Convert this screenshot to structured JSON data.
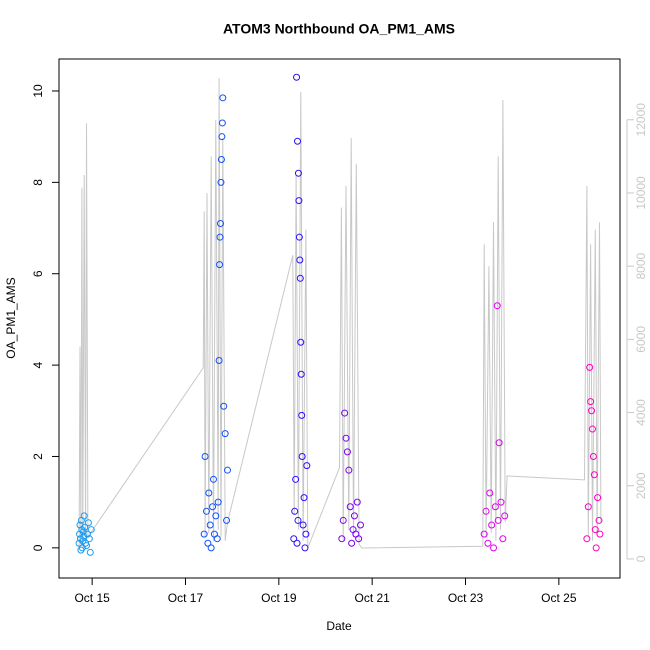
{
  "chart_data": {
    "type": "scatter",
    "title": "ATOM3 Northbound OA_PM1_AMS",
    "x_label": "Date",
    "y_label": "OA_PM1_AMS",
    "xlim": [
      14.29,
      26.31
    ],
    "xticks": [
      {
        "value": 15,
        "label": "Oct 15"
      },
      {
        "value": 17,
        "label": "Oct 17"
      },
      {
        "value": 19,
        "label": "Oct 19"
      },
      {
        "value": 21,
        "label": "Oct 21"
      },
      {
        "value": 23,
        "label": "Oct 23"
      },
      {
        "value": 25,
        "label": "Oct 25"
      }
    ],
    "ylim": [
      -0.66,
      10.7
    ],
    "yticks": [
      0,
      2,
      4,
      6,
      8,
      10
    ],
    "y2lim": [
      -520,
      13660
    ],
    "y2ticks": [
      0,
      2000,
      4000,
      6000,
      8000,
      10000,
      12000
    ],
    "y2_color": "#c8c8c8",
    "series": [
      {
        "style": "line",
        "axis": "y2",
        "color": "#c8c8c8",
        "x": [
          14.72,
          14.74,
          14.76,
          14.78,
          14.8,
          14.83,
          14.86,
          14.88,
          14.91,
          17.38,
          17.4,
          17.42,
          17.46,
          17.5,
          17.55,
          17.6,
          17.65,
          17.7,
          17.72,
          17.76,
          17.8,
          17.85,
          17.9,
          19.3,
          19.33,
          19.37,
          19.42,
          19.47,
          19.52,
          19.58,
          19.62,
          20.3,
          20.34,
          20.38,
          20.44,
          20.5,
          20.55,
          20.6,
          20.66,
          20.72,
          20.78,
          23.37,
          23.4,
          23.44,
          23.5,
          23.55,
          23.6,
          23.65,
          23.7,
          23.75,
          23.8,
          23.85,
          23.89,
          25.55,
          25.6,
          25.63,
          25.68,
          25.72,
          25.78,
          25.82,
          25.87,
          25.9
        ],
        "values": [
          300,
          5800,
          400,
          10140,
          350,
          10490,
          500,
          11900,
          600,
          5220,
          9500,
          600,
          10000,
          700,
          11000,
          500,
          12000,
          800,
          13140,
          600,
          11500,
          500,
          1000,
          8300,
          1200,
          10500,
          800,
          12760,
          500,
          9000,
          300,
          2500,
          9600,
          500,
          10200,
          800,
          11500,
          600,
          10800,
          400,
          300,
          350,
          8600,
          600,
          8000,
          700,
          9200,
          500,
          11000,
          800,
          12540,
          1000,
          2270,
          2160,
          10190,
          600,
          8600,
          500,
          9000,
          700,
          9200,
          1000
        ]
      },
      {
        "style": "points",
        "color": "#1e9bf0",
        "x": [
          14.72,
          14.73,
          14.74,
          14.75,
          14.76,
          14.77,
          14.78,
          14.79,
          14.8,
          14.81,
          14.82,
          14.83,
          14.84,
          14.86,
          14.88,
          14.9,
          14.92,
          14.94,
          14.96,
          14.98
        ],
        "values": [
          0.1,
          0.3,
          0.5,
          0.2,
          -0.05,
          0.6,
          0.4,
          0.0,
          0.15,
          0.35,
          0.25,
          0.7,
          0.45,
          0.1,
          0.05,
          0.3,
          0.55,
          0.2,
          -0.1,
          0.4
        ]
      },
      {
        "style": "points",
        "color": "#1050ff",
        "x": [
          17.4,
          17.42,
          17.45,
          17.48,
          17.5,
          17.53,
          17.55,
          17.58,
          17.6,
          17.62,
          17.65,
          17.68,
          17.7,
          17.72,
          17.73,
          17.74,
          17.75,
          17.76,
          17.77,
          17.78,
          17.79,
          17.8,
          17.82,
          17.85,
          17.88,
          17.9
        ],
        "values": [
          0.3,
          2.0,
          0.8,
          0.1,
          1.2,
          0.5,
          0.0,
          0.9,
          1.5,
          0.3,
          0.7,
          0.2,
          1.0,
          4.1,
          6.2,
          6.8,
          7.1,
          8.0,
          8.5,
          9.0,
          9.3,
          9.85,
          3.1,
          2.5,
          0.6,
          1.7
        ]
      },
      {
        "style": "points",
        "color": "#2a10ff",
        "x": [
          19.32,
          19.34,
          19.36,
          19.38,
          19.4,
          19.42,
          19.43,
          19.44,
          19.45,
          19.46,
          19.47,
          19.48,
          19.49,
          19.5,
          19.52,
          19.54,
          19.56,
          19.58,
          19.6,
          19.41,
          19.39
        ],
        "values": [
          0.2,
          0.8,
          1.5,
          10.3,
          8.9,
          8.2,
          7.6,
          6.8,
          6.3,
          5.9,
          4.5,
          3.8,
          2.9,
          2.0,
          0.5,
          1.1,
          0.0,
          0.3,
          1.8,
          0.6,
          0.1
        ]
      },
      {
        "style": "points",
        "color": "#7a00f0",
        "x": [
          20.35,
          20.38,
          20.41,
          20.44,
          20.47,
          20.5,
          20.53,
          20.56,
          20.59,
          20.62,
          20.65,
          20.68,
          20.71,
          20.75
        ],
        "values": [
          0.2,
          0.6,
          2.95,
          2.4,
          2.1,
          1.7,
          0.9,
          0.1,
          0.4,
          0.7,
          0.3,
          1.0,
          0.2,
          0.5
        ]
      },
      {
        "style": "points",
        "color": "#e000f0",
        "x": [
          23.4,
          23.44,
          23.48,
          23.52,
          23.56,
          23.6,
          23.64,
          23.68,
          23.7,
          23.72,
          23.76,
          23.8,
          23.84
        ],
        "values": [
          0.3,
          0.8,
          0.1,
          1.2,
          0.5,
          0.0,
          0.9,
          5.3,
          0.6,
          2.3,
          1.0,
          0.2,
          0.7
        ]
      },
      {
        "style": "points",
        "color": "#ff00c8",
        "x": [
          25.6,
          25.63,
          25.66,
          25.68,
          25.7,
          25.72,
          25.74,
          25.76,
          25.78,
          25.8,
          25.83,
          25.86,
          25.88
        ],
        "values": [
          0.2,
          0.9,
          3.95,
          3.2,
          3.0,
          2.6,
          2.0,
          1.6,
          0.4,
          0.0,
          1.1,
          0.6,
          0.3
        ]
      }
    ]
  }
}
